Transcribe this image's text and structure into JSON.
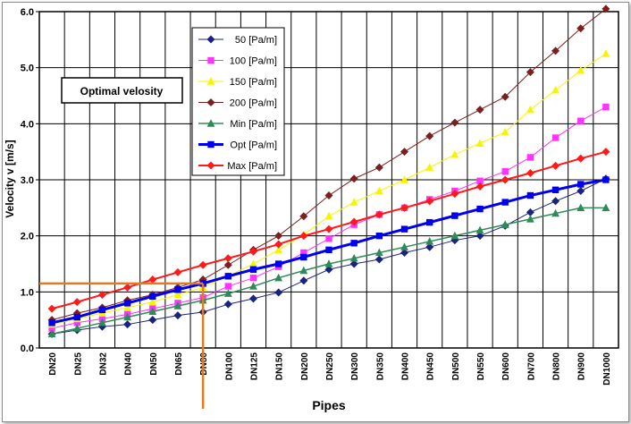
{
  "chart_data": {
    "type": "line",
    "xlabel": "Pipes",
    "ylabel": "Velocity v [m/s]",
    "ylim": [
      0,
      6
    ],
    "yticks": [
      "0.0",
      "1.0",
      "2.0",
      "3.0",
      "4.0",
      "5.0",
      "6.0"
    ],
    "grid": true,
    "legend_position": "top-center",
    "annotation": "Optimal velosity",
    "highlight": {
      "x": "DN80",
      "y": 1.15,
      "color": "#e07b20"
    },
    "categories": [
      "DN20",
      "DN25",
      "DN32",
      "DN40",
      "DN50",
      "DN65",
      "DN80",
      "DN100",
      "DN125",
      "DN150",
      "DN200",
      "DN250",
      "DN300",
      "DN350",
      "DN400",
      "DN450",
      "DN500",
      "DN550",
      "DN600",
      "DN700",
      "DN800",
      "DN900",
      "DN1000"
    ],
    "series": [
      {
        "name": "50 [Pa/m]",
        "color": "#1a237e",
        "width": 1,
        "marker": "diamond",
        "values": [
          0.25,
          0.32,
          0.38,
          0.42,
          0.5,
          0.58,
          0.64,
          0.78,
          0.88,
          0.99,
          1.2,
          1.4,
          1.5,
          1.58,
          1.7,
          1.8,
          1.92,
          2.0,
          2.18,
          2.42,
          2.62,
          2.8,
          3.02
        ]
      },
      {
        "name": "100 [Pa/m]",
        "color": "#ff33ff",
        "width": 1,
        "marker": "square",
        "values": [
          0.35,
          0.45,
          0.52,
          0.6,
          0.7,
          0.8,
          0.9,
          1.1,
          1.25,
          1.45,
          1.7,
          1.95,
          2.2,
          2.38,
          2.5,
          2.65,
          2.8,
          2.98,
          3.15,
          3.4,
          3.75,
          4.05,
          4.3
        ]
      },
      {
        "name": "150 [Pa/m]",
        "color": "#f5f500",
        "width": 1,
        "marker": "triangle",
        "values": [
          0.42,
          0.52,
          0.62,
          0.72,
          0.82,
          0.95,
          1.08,
          1.28,
          1.5,
          1.75,
          2.02,
          2.35,
          2.6,
          2.8,
          3.0,
          3.22,
          3.45,
          3.65,
          3.85,
          4.25,
          4.6,
          4.95,
          5.25
        ]
      },
      {
        "name": "200 [Pa/m]",
        "color": "#7b1f1f",
        "width": 1,
        "marker": "diamond",
        "values": [
          0.5,
          0.62,
          0.72,
          0.85,
          0.95,
          1.08,
          1.22,
          1.48,
          1.75,
          2.0,
          2.35,
          2.72,
          3.02,
          3.22,
          3.5,
          3.78,
          4.02,
          4.25,
          4.48,
          4.92,
          5.3,
          5.7,
          6.05
        ]
      },
      {
        "name": "Min [Pa/m]",
        "color": "#2e8b57",
        "width": 1.5,
        "marker": "triangle",
        "values": [
          0.25,
          0.35,
          0.45,
          0.55,
          0.65,
          0.75,
          0.85,
          0.97,
          1.1,
          1.25,
          1.38,
          1.5,
          1.6,
          1.7,
          1.8,
          1.9,
          2.0,
          2.1,
          2.2,
          2.3,
          2.4,
          2.5,
          2.5
        ]
      },
      {
        "name": "Opt [Pa/m]",
        "color": "#0000ee",
        "width": 3,
        "marker": "square",
        "values": [
          0.45,
          0.55,
          0.68,
          0.8,
          0.92,
          1.04,
          1.15,
          1.28,
          1.4,
          1.5,
          1.62,
          1.75,
          1.87,
          2.0,
          2.12,
          2.24,
          2.36,
          2.48,
          2.6,
          2.72,
          2.82,
          2.92,
          3.0
        ]
      },
      {
        "name": "Max [Pa/m]",
        "color": "#ff1a1a",
        "width": 2,
        "marker": "diamond",
        "values": [
          0.7,
          0.82,
          0.95,
          1.08,
          1.22,
          1.35,
          1.48,
          1.6,
          1.72,
          1.85,
          2.0,
          2.12,
          2.25,
          2.38,
          2.5,
          2.62,
          2.75,
          2.88,
          3.0,
          3.12,
          3.25,
          3.38,
          3.5
        ]
      }
    ]
  }
}
